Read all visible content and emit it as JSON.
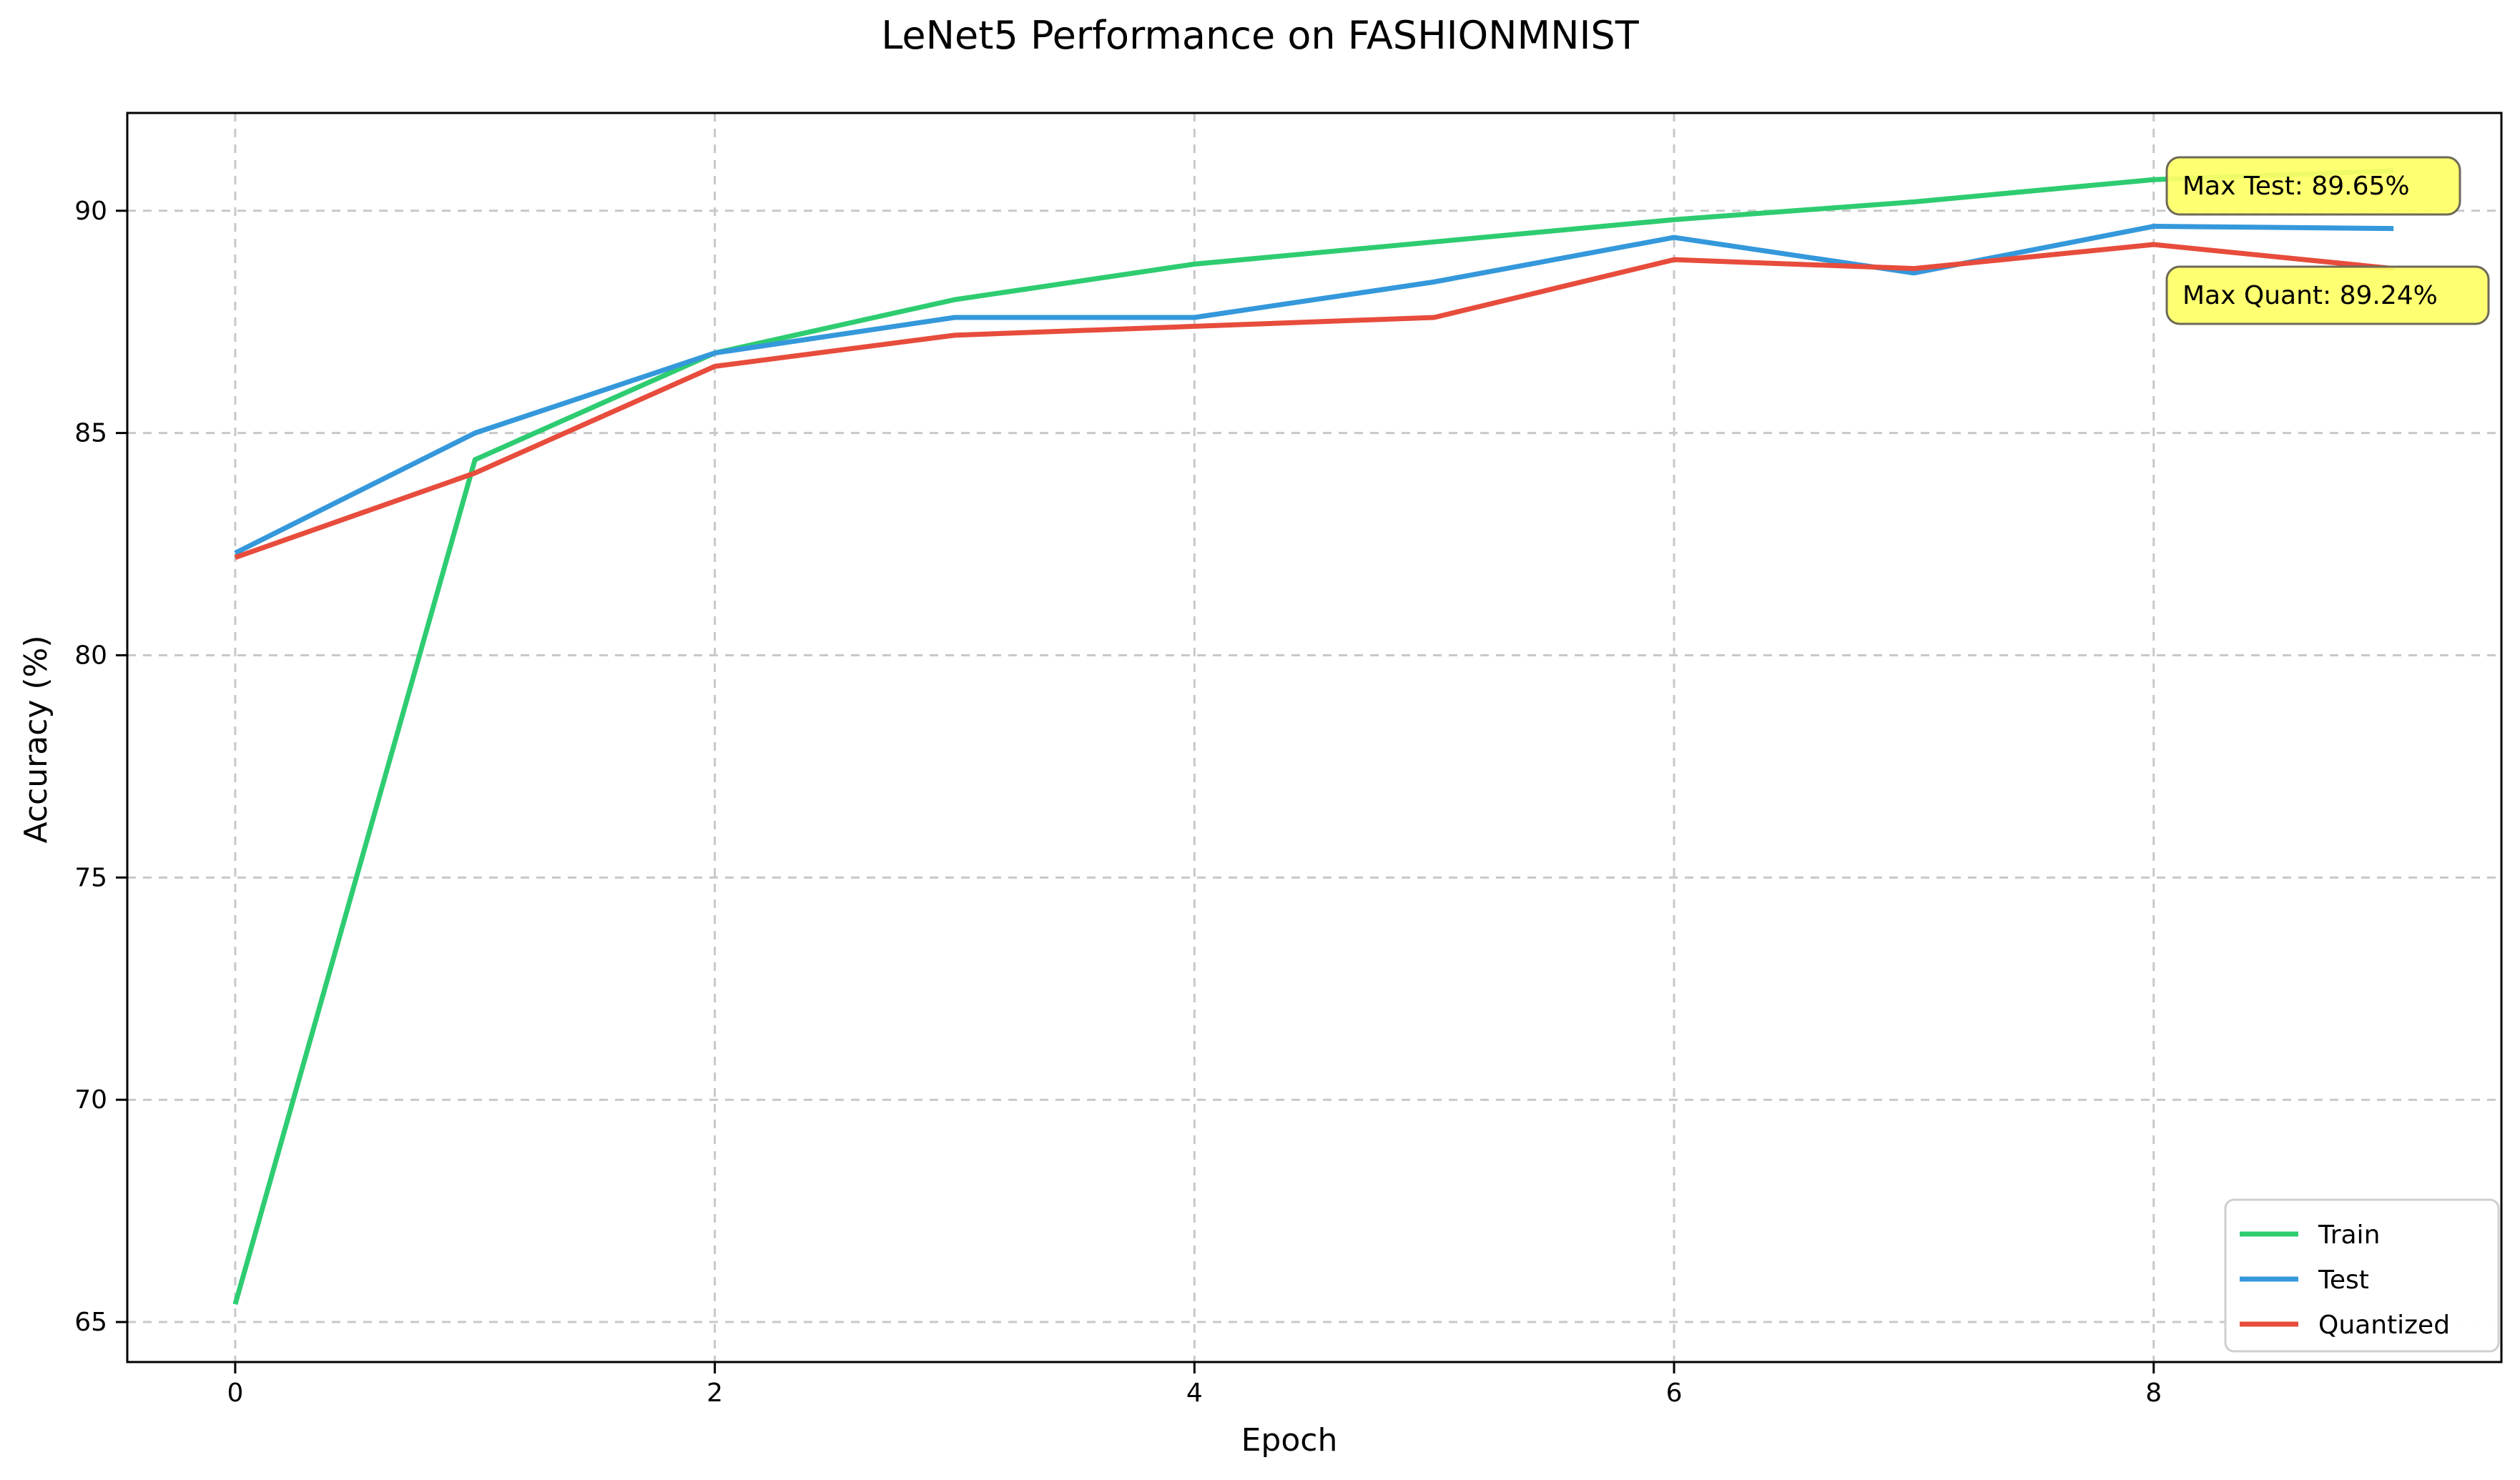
{
  "chart_data": {
    "type": "line",
    "title": "LeNet5 Performance on FASHIONMNIST",
    "xlabel": "Epoch",
    "ylabel": "Accuracy (%)",
    "x": [
      0,
      1,
      2,
      3,
      4,
      5,
      6,
      7,
      8,
      9
    ],
    "xlim": [
      -0.45,
      9.45
    ],
    "ylim": [
      64.1,
      92.2
    ],
    "xticks": [
      0,
      2,
      4,
      6,
      8
    ],
    "yticks": [
      65,
      70,
      75,
      80,
      85,
      90
    ],
    "grid": true,
    "legend_position": "lower-right",
    "series": [
      {
        "name": "Train",
        "color": "#2ecc71",
        "values": [
          65.4,
          84.4,
          86.8,
          88.0,
          88.8,
          89.3,
          89.8,
          90.2,
          90.7,
          90.9
        ]
      },
      {
        "name": "Test",
        "color": "#3498db",
        "values": [
          82.3,
          85.0,
          86.8,
          87.6,
          87.6,
          88.4,
          89.4,
          88.6,
          89.65,
          89.6
        ]
      },
      {
        "name": "Quantized",
        "color": "#e74c3c",
        "values": [
          82.2,
          84.1,
          86.5,
          87.2,
          87.4,
          87.6,
          88.9,
          88.7,
          89.24,
          88.7
        ]
      }
    ],
    "annotations": [
      {
        "text": "Max Test: 89.65%",
        "x": 8,
        "y": 89.65,
        "color": "#ffff66"
      },
      {
        "text": "Max Quant: 89.24%",
        "x": 8,
        "y": 89.24,
        "color": "#ffff66"
      }
    ]
  }
}
